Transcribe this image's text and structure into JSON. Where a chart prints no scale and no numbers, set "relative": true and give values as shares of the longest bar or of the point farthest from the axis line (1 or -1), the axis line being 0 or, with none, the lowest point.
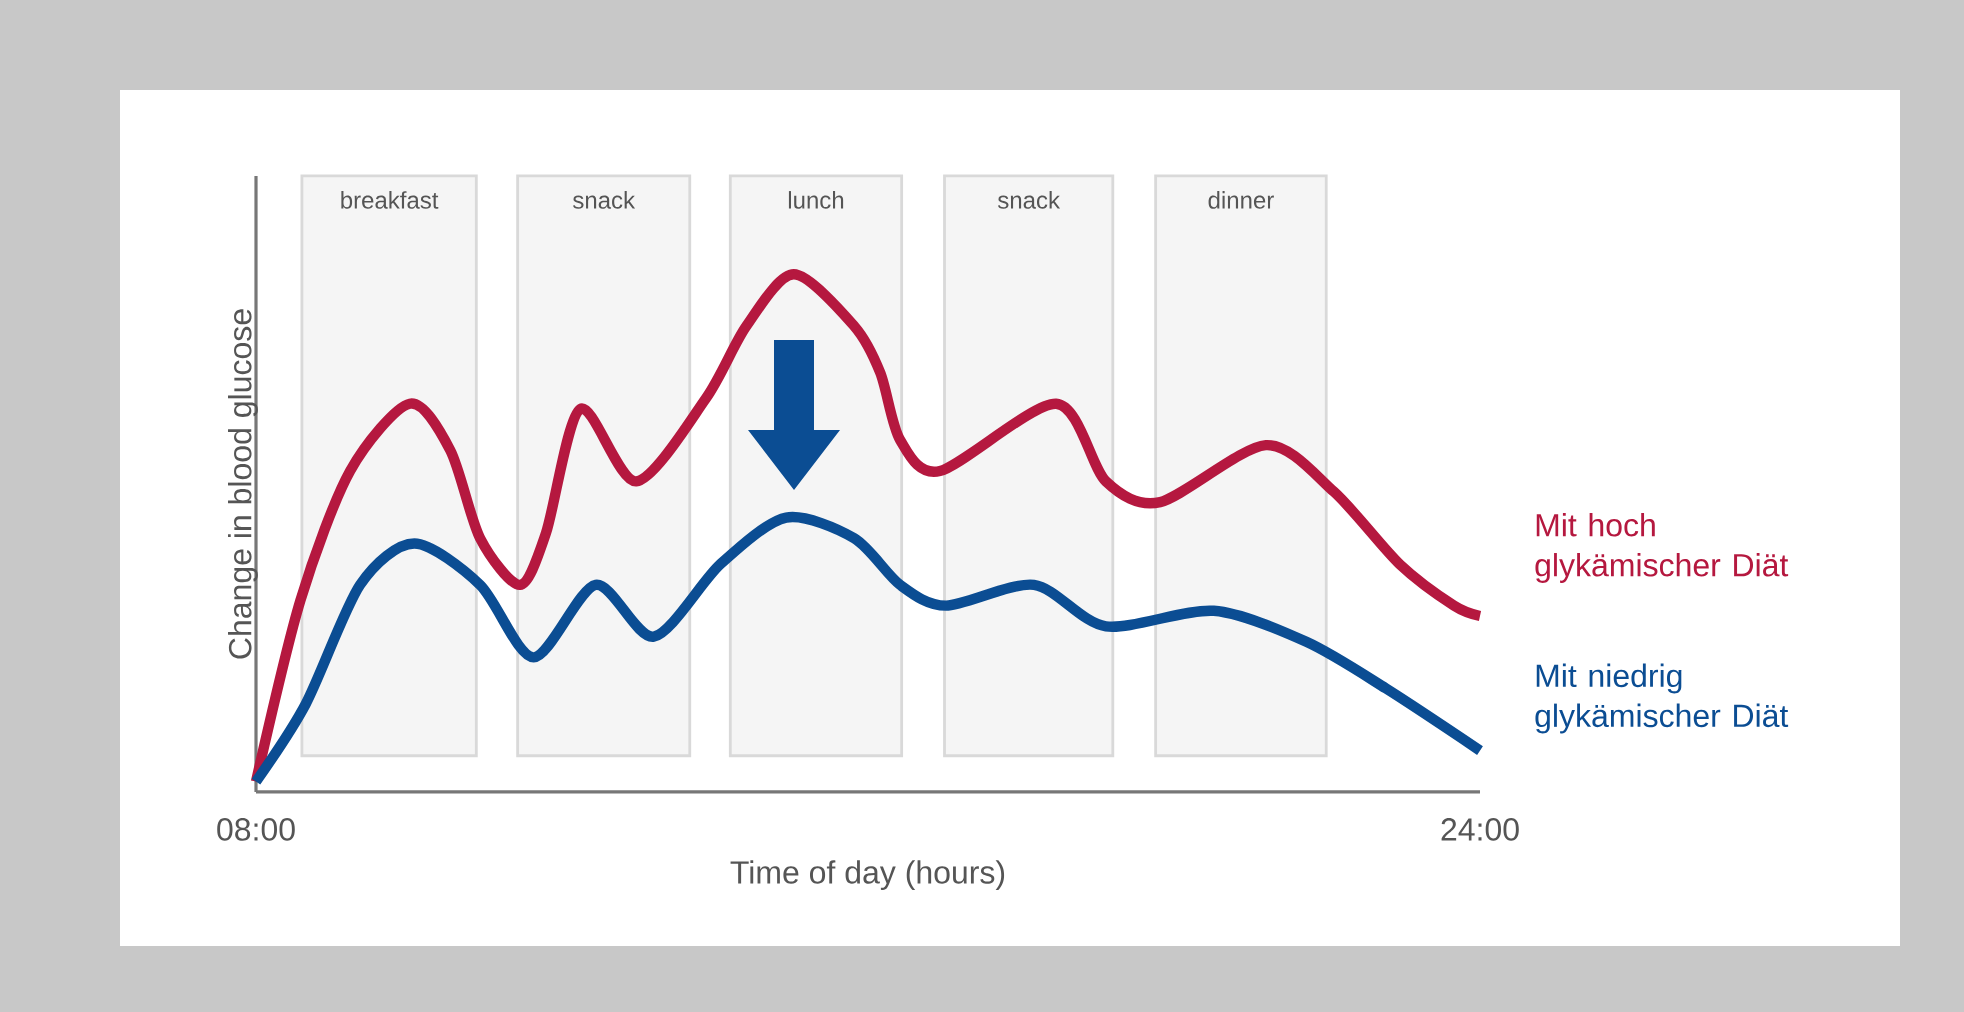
{
  "chart_data": {
    "type": "line",
    "relative": true,
    "xlabel": "Time of day (hours)",
    "ylabel": "Change in blood glucose",
    "xlim": [
      8,
      24
    ],
    "xticks": [
      {
        "value": 8,
        "label": "08:00"
      },
      {
        "value": 24,
        "label": "24:00"
      }
    ],
    "bands": [
      {
        "axis": "x",
        "from": 8.6,
        "to": 10.88,
        "label": "breakfast",
        "color": "#d9d9d9"
      },
      {
        "axis": "x",
        "from": 11.42,
        "to": 13.67,
        "label": "snack",
        "color": "#d9d9d9"
      },
      {
        "axis": "x",
        "from": 14.2,
        "to": 16.44,
        "label": "lunch",
        "color": "#d9d9d9"
      },
      {
        "axis": "x",
        "from": 17.0,
        "to": 19.2,
        "label": "snack",
        "color": "#d9d9d9"
      },
      {
        "axis": "x",
        "from": 19.76,
        "to": 21.99,
        "label": "dinner",
        "color": "#d9d9d9"
      }
    ],
    "series": [
      {
        "name": "Mit hoch glykämischer Diät",
        "color": "#b5183f",
        "x": [
          8,
          8.58,
          9.23,
          10.01,
          10.54,
          10.93,
          11.45,
          11.79,
          12.24,
          12.97,
          13.88,
          14.41,
          15.03,
          15.82,
          16.16,
          16.42,
          16.94,
          18.46,
          19.11,
          19.82,
          21.2,
          22.09,
          22.95,
          23.66,
          24
        ],
        "values": [
          0.02,
          0.37,
          0.62,
          0.75,
          0.66,
          0.49,
          0.4,
          0.5,
          0.74,
          0.6,
          0.76,
          0.9,
          1.0,
          0.9,
          0.81,
          0.68,
          0.62,
          0.75,
          0.6,
          0.56,
          0.67,
          0.58,
          0.44,
          0.36,
          0.34
        ]
      },
      {
        "name": "Mit niedrig glykämischer Diät",
        "color": "#0b4d93",
        "x": [
          8,
          8.65,
          9.36,
          10.07,
          10.93,
          11.63,
          12.44,
          13.2,
          14.07,
          14.93,
          15.82,
          16.42,
          17.02,
          18.17,
          19.11,
          20.52,
          21.73,
          22.77,
          24
        ],
        "values": [
          0.02,
          0.17,
          0.4,
          0.48,
          0.4,
          0.26,
          0.4,
          0.3,
          0.44,
          0.53,
          0.49,
          0.4,
          0.36,
          0.4,
          0.32,
          0.35,
          0.29,
          0.2,
          0.08
        ]
      }
    ]
  }
}
